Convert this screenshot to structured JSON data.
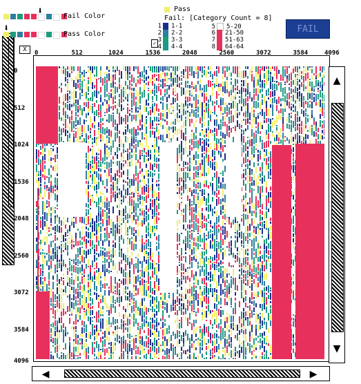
{
  "legend": {
    "fail_color_label": "Fail Color",
    "pass_color_label": "Pass Color",
    "pass_label": "Pass",
    "fail_header": "Fail: [Category Count = 8]",
    "categories": [
      {
        "num": "1",
        "range": "1-1",
        "color": "#1a2e8c"
      },
      {
        "num": "2",
        "range": "2-2",
        "color": "#2c7fa0"
      },
      {
        "num": "3",
        "range": "3-3",
        "color": "#1d9c7c"
      },
      {
        "num": "4",
        "range": "4-4",
        "color": "#1a9a8a"
      },
      {
        "num": "5",
        "range": "5-20",
        "color": "#ffffff"
      },
      {
        "num": "6",
        "range": "21-50",
        "color": "#e8305c"
      },
      {
        "num": "7",
        "range": "51-63",
        "color": "#e8305c"
      },
      {
        "num": "8",
        "range": "64-64",
        "color": "#e8305c"
      }
    ],
    "fail_swatches": [
      "#f2ef6a",
      "#2c7fa0",
      "#1d9c7c",
      "#e8305c",
      "#e8305c",
      "#ffffff",
      "#2c7fa0",
      "#ffffff",
      "#e8305c"
    ],
    "pass_swatches": [
      "#f2ef6a",
      "#1d9c7c",
      "#2c7fa0",
      "#e8305c",
      "#e8305c",
      "#ffffff",
      "#1d9c7c",
      "#ffffff",
      "#e8305c"
    ]
  },
  "status": {
    "badge": "FAIL",
    "color": "#1c3f93"
  },
  "axis": {
    "x_ticks": [
      "0",
      "512",
      "1024",
      "1536",
      "2048",
      "2560",
      "3072",
      "3584",
      "4096"
    ],
    "y_ticks": [
      "0",
      "512",
      "1024",
      "1536",
      "2048",
      "2560",
      "3072",
      "3584",
      "4096"
    ]
  },
  "colors": {
    "pass": "#f2ef6a",
    "fail_low": "#1a2e8c",
    "fail_mid": "#2c7fa0",
    "fail_teal": "#1d9c7c",
    "fail_high": "#e8305c",
    "background": "#ffffff"
  },
  "controls": {
    "scroll_up": "▲",
    "scroll_down": "▼",
    "scroll_left": "◀",
    "scroll_right": "▶",
    "pointer_marker": "⬇"
  }
}
